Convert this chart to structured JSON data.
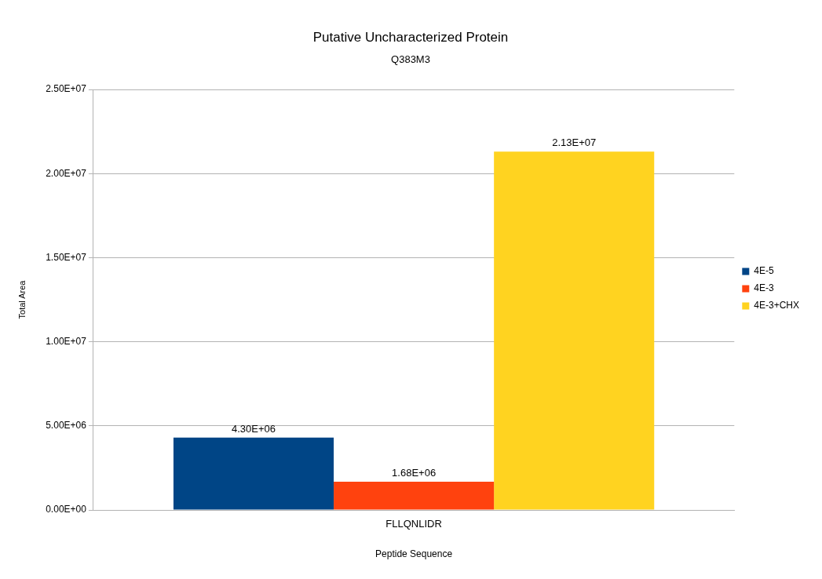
{
  "chart_data": {
    "type": "bar",
    "title": "Putative Uncharacterized Protein",
    "subtitle": "Q383M3",
    "xlabel": "Peptide Sequence",
    "ylabel": "Total Area",
    "categories": [
      "FLLQNLIDR"
    ],
    "series": [
      {
        "name": "4E-5",
        "color": "#004586",
        "values": [
          4300000
        ],
        "value_labels": [
          "4.30E+06"
        ]
      },
      {
        "name": "4E-3",
        "color": "#ff420e",
        "values": [
          1680000
        ],
        "value_labels": [
          "1.68E+06"
        ]
      },
      {
        "name": "4E-3+CHX",
        "color": "#ffd320",
        "values": [
          21300000
        ],
        "value_labels": [
          "2.13E+07"
        ]
      }
    ],
    "ylim": [
      0,
      25000000
    ],
    "yticks": [
      {
        "value": 0,
        "label": "0.00E+00"
      },
      {
        "value": 5000000,
        "label": "5.00E+06"
      },
      {
        "value": 10000000,
        "label": "1.00E+07"
      },
      {
        "value": 15000000,
        "label": "1.50E+07"
      },
      {
        "value": 20000000,
        "label": "2.00E+07"
      },
      {
        "value": 25000000,
        "label": "2.50E+07"
      }
    ],
    "grid": "y",
    "legend": "right"
  }
}
